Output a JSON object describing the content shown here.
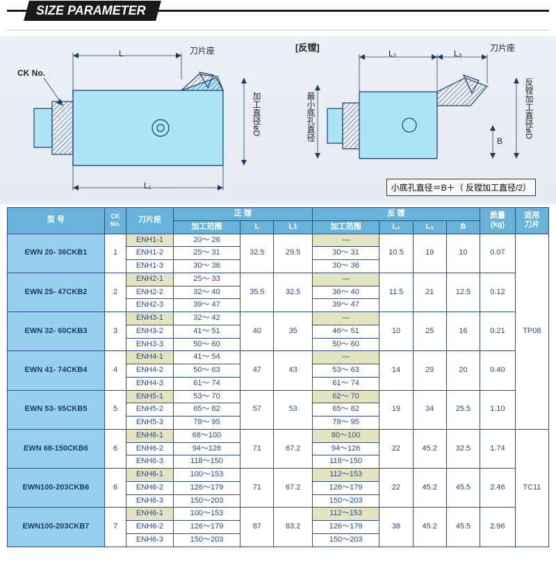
{
  "header": {
    "title": "SIZE PARAMETER"
  },
  "diagram_left": {
    "seat_label": "刀片座",
    "ck_label": "CK No.",
    "L_label": "L",
    "L1_label": "L₁",
    "diameter_label": "加工直径øD",
    "colors": {
      "outline": "#1a3a6a",
      "fill": "#aee4f7",
      "background": "#eaf0f6"
    }
  },
  "diagram_right": {
    "title": "[反镗]",
    "seat_label": "刀片座",
    "L2_label": "L₂",
    "L3_label": "L₃",
    "B_label": "B",
    "left_vtext": "最小底孔直径",
    "right_vtext": "反镗加工直径øD",
    "formula": "小底孔直径＝B＋（ 反镗加工直径/2）"
  },
  "table": {
    "headers": {
      "model": "型 号",
      "ck": "CK No.",
      "seat": "刀片座",
      "forward_group": "正 镗",
      "reverse_group": "反 镗",
      "range": "加工范围",
      "L": "L",
      "L1": "L1",
      "L2": "L₂",
      "L3": "L₃",
      "B": "B",
      "mass": "质量\n(kg)",
      "insert": "适用\n刀片"
    },
    "inserts": [
      "TP08",
      "TC11"
    ],
    "groups": [
      {
        "model": "EWN 20- 36CKB1",
        "ck": "1",
        "rows": [
          {
            "seat": "ENH1-1",
            "range1": "20～ 26",
            "range2": "—",
            "shade": true
          },
          {
            "seat": "ENH1-2",
            "range1": "25～ 31",
            "range2": "30～ 31"
          },
          {
            "seat": "ENH1-3",
            "range1": "30～ 36",
            "range2": "30～ 36"
          }
        ],
        "L": "32.5",
        "L1": "29.5",
        "L2": "10.5",
        "L3": "19",
        "B": "10",
        "kg": "0.07"
      },
      {
        "model": "EWN 25- 47CKB2",
        "ck": "2",
        "rows": [
          {
            "seat": "ENH2-1",
            "range1": "25～ 33",
            "range2": "—",
            "shade": true
          },
          {
            "seat": "ENH2-2",
            "range1": "32～ 40",
            "range2": "36～ 40"
          },
          {
            "seat": "ENH2-3",
            "range1": "39～ 47",
            "range2": "39～ 47"
          }
        ],
        "L": "35.5",
        "L1": "32.5",
        "L2": "11.5",
        "L3": "21",
        "B": "12.5",
        "kg": "0.12"
      },
      {
        "model": "EWN 32- 60CKB3",
        "ck": "3",
        "rows": [
          {
            "seat": "ENH3-1",
            "range1": "32～ 42",
            "range2": "—",
            "shade": true
          },
          {
            "seat": "ENH3-2",
            "range1": "41～ 51",
            "range2": "46～ 51"
          },
          {
            "seat": "ENH3-3",
            "range1": "50～ 60",
            "range2": "50～ 60"
          }
        ],
        "L": "40",
        "L1": "35",
        "L2": "10",
        "L3": "25",
        "B": "16",
        "kg": "0.21"
      },
      {
        "model": "EWN 41- 74CKB4",
        "ck": "4",
        "rows": [
          {
            "seat": "ENH4-1",
            "range1": "41～ 54",
            "range2": "—",
            "shade": true
          },
          {
            "seat": "ENH4-2",
            "range1": "50～ 63",
            "range2": "53～ 63"
          },
          {
            "seat": "ENH4-3",
            "range1": "61～ 74",
            "range2": "61～ 74"
          }
        ],
        "L": "47",
        "L1": "43",
        "L2": "14",
        "L3": "29",
        "B": "20",
        "kg": "0.40"
      },
      {
        "model": "EWN 53- 95CKB5",
        "ck": "5",
        "rows": [
          {
            "seat": "ENH5-1",
            "range1": "53～ 70",
            "range2": "62～ 70",
            "shade": true
          },
          {
            "seat": "ENH5-2",
            "range1": "65～ 82",
            "range2": "65～ 82"
          },
          {
            "seat": "ENH5-3",
            "range1": "78～ 95",
            "range2": "78～ 95"
          }
        ],
        "L": "57",
        "L1": "53",
        "L2": "19",
        "L3": "34",
        "B": "25.5",
        "kg": "1.10"
      },
      {
        "model": "EWN 68-150CKB6",
        "ck": "6",
        "rows": [
          {
            "seat": "ENH6-1",
            "range1": "68～100",
            "range2": "80～100",
            "shade": true
          },
          {
            "seat": "ENH6-2",
            "range1": "94～126",
            "range2": "94～126"
          },
          {
            "seat": "ENH6-3",
            "range1": "118～150",
            "range2": "118～150"
          }
        ],
        "L": "71",
        "L1": "67.2",
        "L2": "22",
        "L3": "45.2",
        "B": "32.5",
        "kg": "1.74"
      },
      {
        "model": "EWN100-203CKB6",
        "ck": "6",
        "rows": [
          {
            "seat": "ENH6-1",
            "range1": "100～153",
            "range2": "112～153",
            "shade": true
          },
          {
            "seat": "ENH6-2",
            "range1": "126～179",
            "range2": "126～179"
          },
          {
            "seat": "ENH6-3",
            "range1": "150～203",
            "range2": "150～203"
          }
        ],
        "L": "71",
        "L1": "67.2",
        "L2": "22",
        "L3": "45.2",
        "B": "45.5",
        "kg": "2.46"
      },
      {
        "model": "EWN100-203CKB7",
        "ck": "7",
        "rows": [
          {
            "seat": "ENH6-1",
            "range1": "100～153",
            "range2": "112～153",
            "shade": true
          },
          {
            "seat": "ENH6-2",
            "range1": "126～179",
            "range2": "126～179"
          },
          {
            "seat": "ENH6-3",
            "range1": "150～203",
            "range2": "150～203"
          }
        ],
        "L": "87",
        "L1": "83.2",
        "L2": "38",
        "L3": "45.2",
        "B": "45.5",
        "kg": "2.96"
      }
    ]
  }
}
